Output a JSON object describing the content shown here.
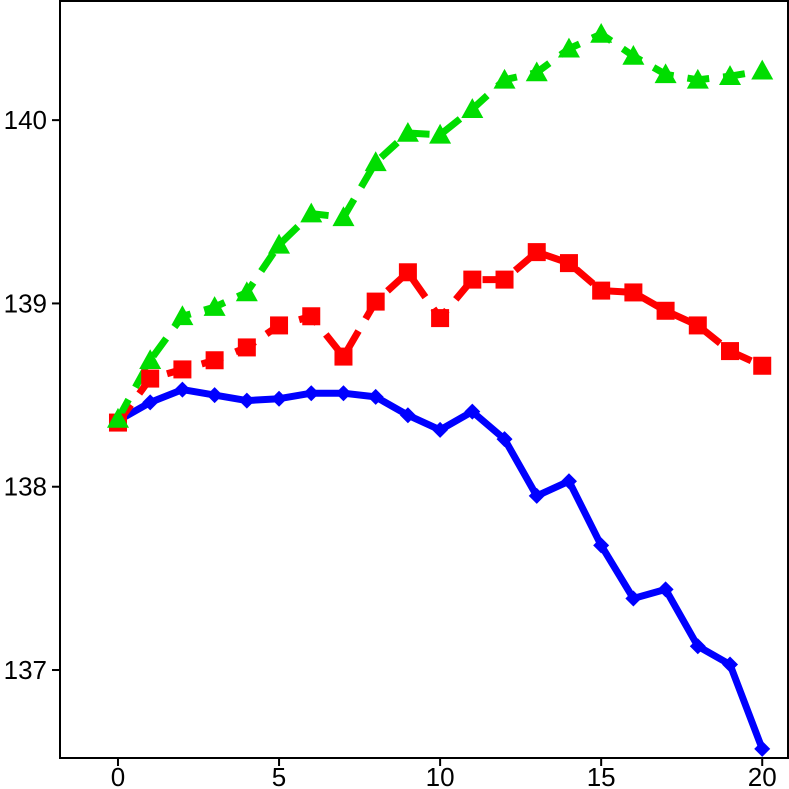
{
  "chart_data": {
    "type": "line",
    "title": "",
    "xlabel": "",
    "ylabel": "",
    "xlim": [
      -1.8,
      20.8
    ],
    "ylim": [
      136.52,
      140.65
    ],
    "xticks": [
      0,
      5,
      10,
      15,
      20
    ],
    "yticks": [
      137,
      138,
      139,
      140
    ],
    "xtick_labels": [
      "0",
      "5",
      "10",
      "15",
      "20"
    ],
    "ytick_labels": [
      "137",
      "138",
      "139",
      "140"
    ],
    "grid": false,
    "legend": "none",
    "x": [
      0,
      1,
      2,
      3,
      4,
      5,
      6,
      7,
      8,
      9,
      10,
      11,
      12,
      13,
      14,
      15,
      16,
      17,
      18,
      19,
      20
    ],
    "series": [
      {
        "color": "#0000ff",
        "line_style": "solid",
        "marker": "diamond",
        "values": [
          138.36,
          138.46,
          138.53,
          138.5,
          138.47,
          138.48,
          138.51,
          138.51,
          138.49,
          138.39,
          138.31,
          138.41,
          138.26,
          137.95,
          138.03,
          137.68,
          137.39,
          137.44,
          137.13,
          137.03,
          136.57
        ]
      },
      {
        "color": "#ff0000",
        "line_style": "dashed",
        "marker": "square",
        "values": [
          138.35,
          138.59,
          138.64,
          138.69,
          138.76,
          138.88,
          138.93,
          138.71,
          139.01,
          139.17,
          138.92,
          139.13,
          139.13,
          139.28,
          139.22,
          139.07,
          139.06,
          138.96,
          138.88,
          138.74,
          138.66
        ]
      },
      {
        "color": "#00dd00",
        "line_style": "dashed",
        "marker": "triangle",
        "values": [
          138.37,
          138.69,
          138.93,
          138.98,
          139.06,
          139.32,
          139.49,
          139.47,
          139.77,
          139.93,
          139.92,
          140.06,
          140.22,
          140.26,
          140.39,
          140.47,
          140.35,
          140.25,
          140.22,
          140.24,
          140.27
        ]
      }
    ]
  }
}
